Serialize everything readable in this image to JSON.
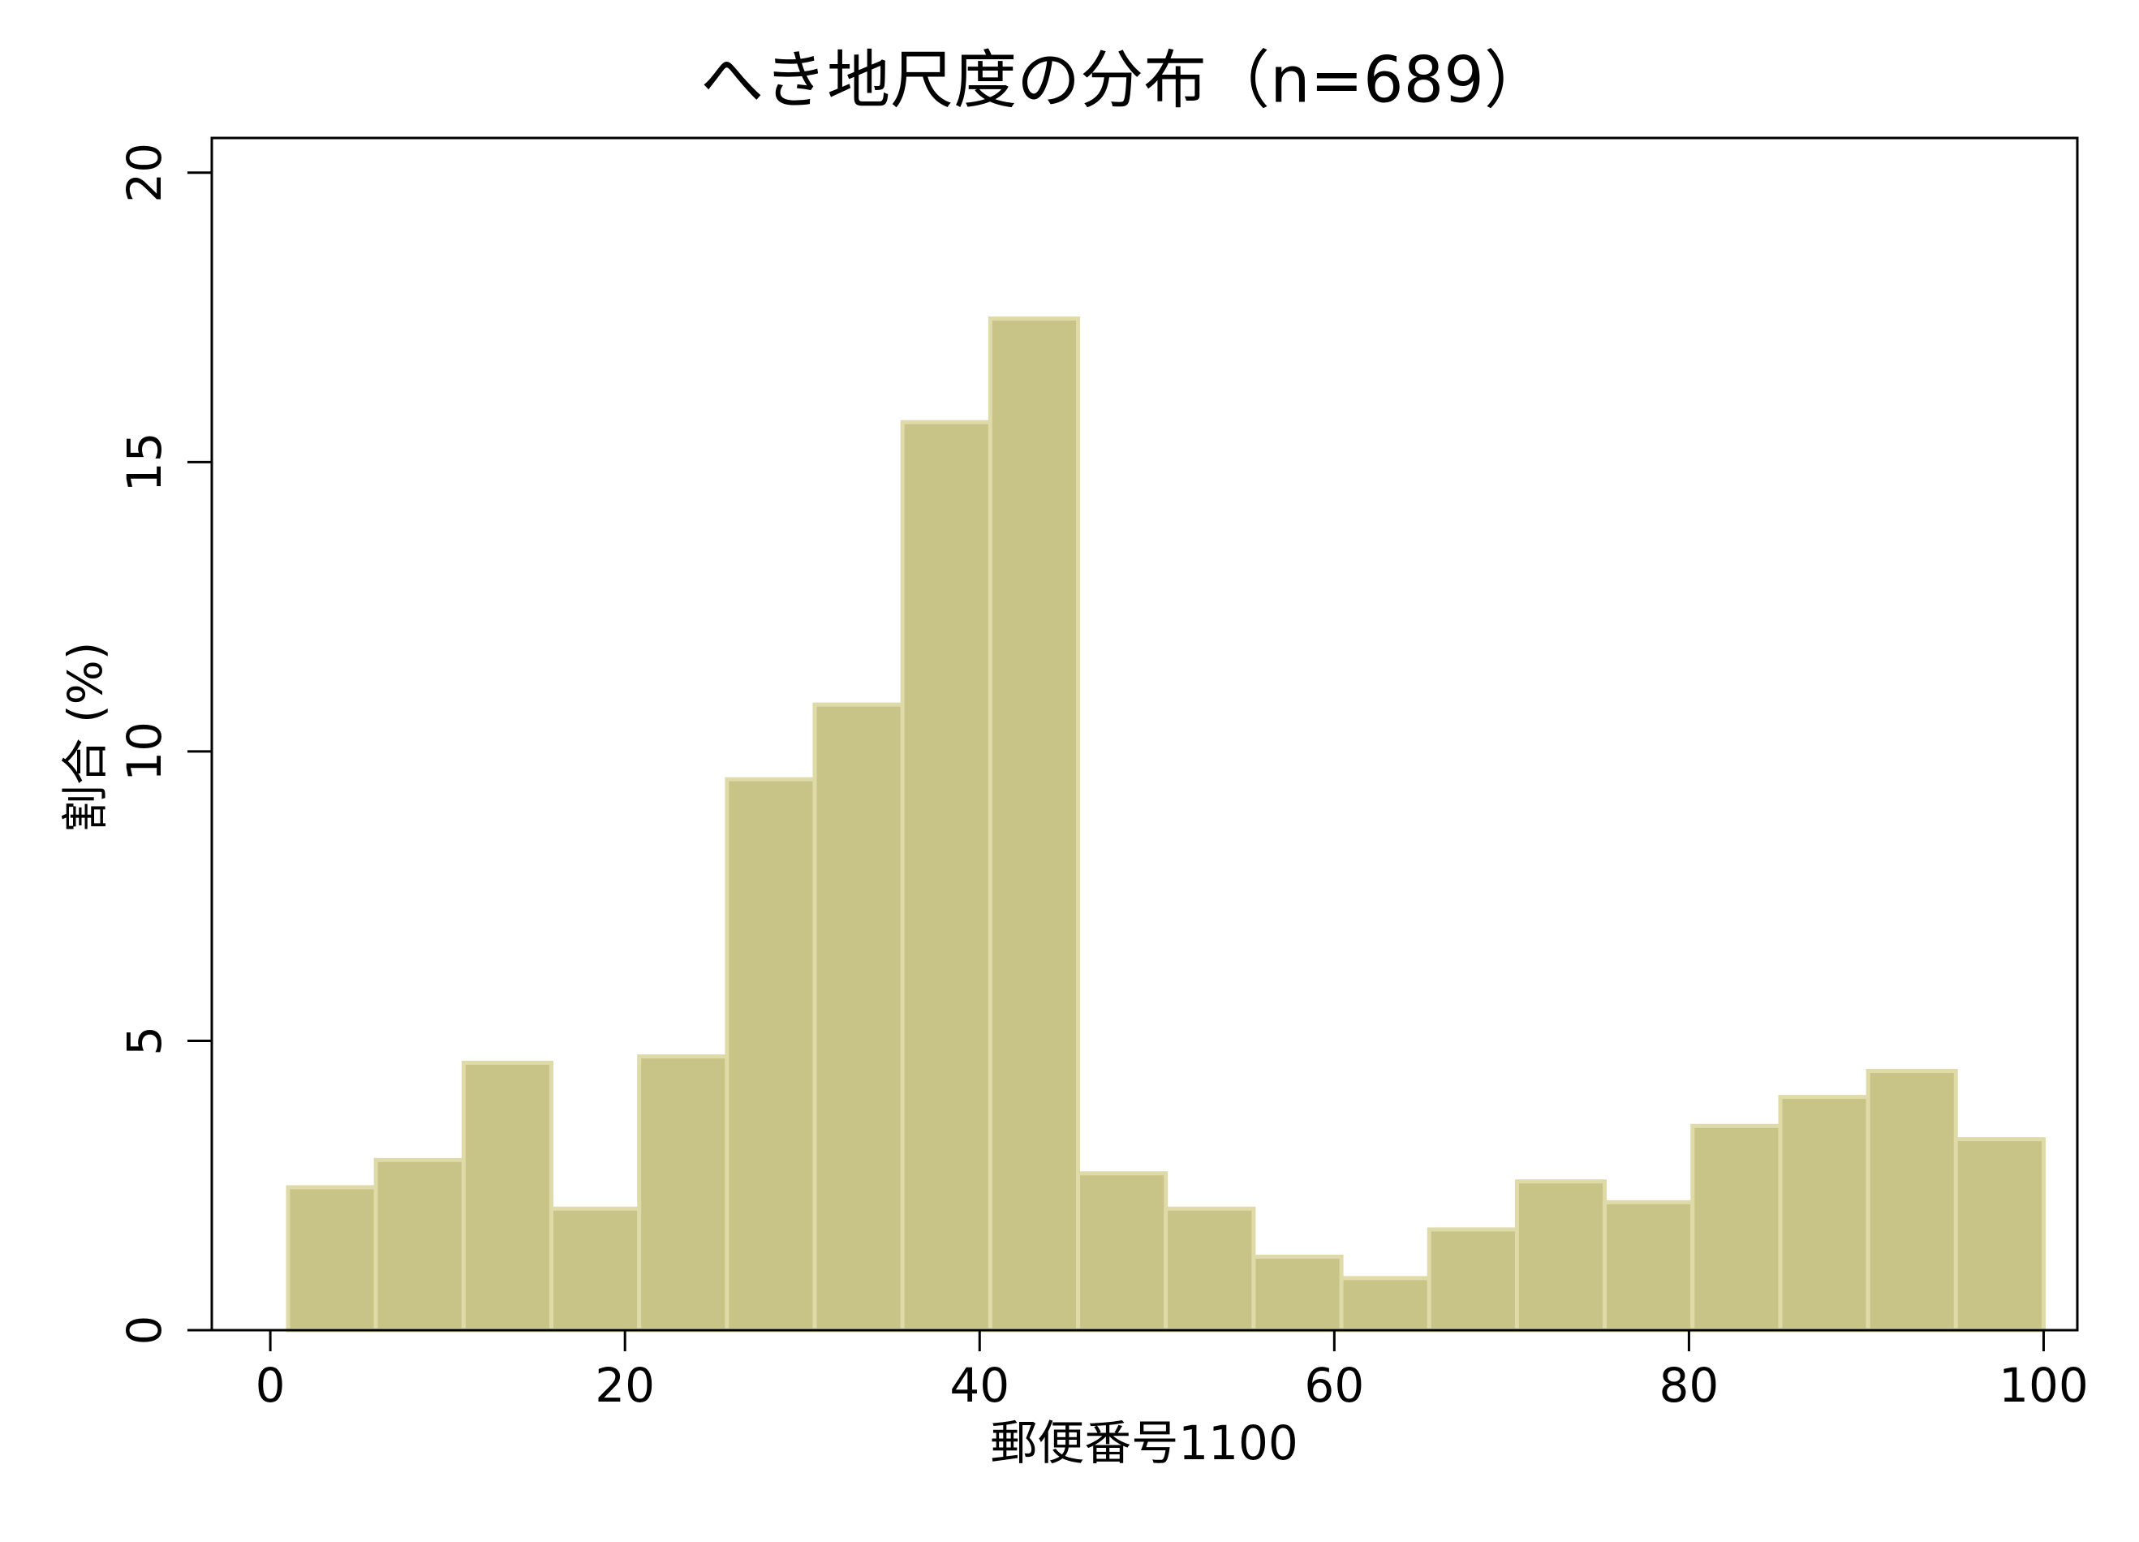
{
  "chart_data": {
    "type": "histogram",
    "title": "へき地尺度の分布（n=689）",
    "x_label": "郵便番号1100",
    "y_label": "割合 (%)",
    "bins": [
      1,
      5.95,
      10.9,
      15.85,
      20.8,
      25.75,
      30.7,
      35.65,
      40.6,
      45.55,
      50.5,
      55.45,
      60.4,
      65.35,
      70.3,
      75.25,
      80.2,
      85.15,
      90.1,
      95.05,
      100
    ],
    "values": [
      2.47,
      2.94,
      4.62,
      2.1,
      4.73,
      9.52,
      10.81,
      15.69,
      17.48,
      2.71,
      2.1,
      1.27,
      0.9,
      1.74,
      2.57,
      2.21,
      3.53,
      4.03,
      4.48,
      3.3
    ],
    "color": "#c8c387",
    "edge_color": "#dedba8",
    "xlim": [
      -3.3,
      101.9
    ],
    "xticks": [
      0,
      20,
      40,
      60,
      80,
      100
    ],
    "ylim": [
      0,
      20.6
    ],
    "yticks": [
      0,
      5,
      10,
      15,
      20
    ]
  }
}
